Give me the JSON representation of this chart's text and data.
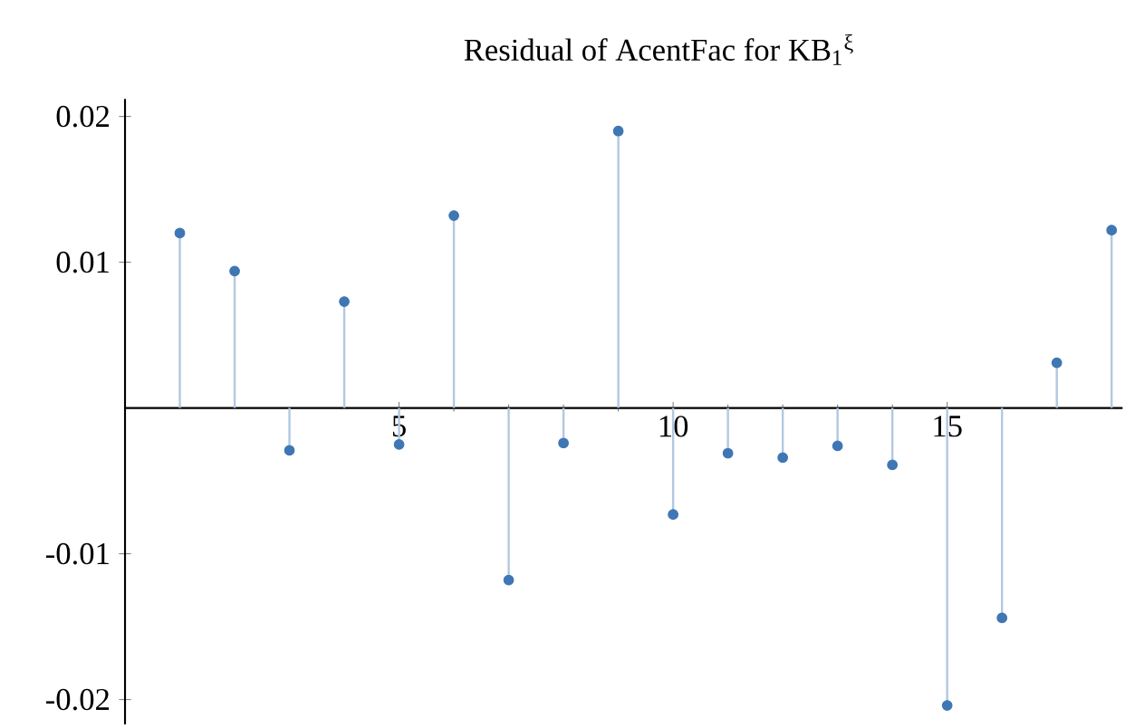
{
  "chart_data": {
    "type": "lollipop",
    "title": "Residual of AcentFac for KB$_{1}$$^{ξ}$",
    "x": [
      1,
      2,
      3,
      4,
      5,
      6,
      7,
      8,
      9,
      10,
      11,
      12,
      13,
      14,
      15,
      16,
      17,
      18
    ],
    "series": [
      {
        "color": "#3f76b4",
        "values": [
          0.012,
          0.0094,
          -0.0029,
          0.0073,
          -0.0025,
          0.0132,
          -0.0118,
          -0.0024,
          0.019,
          -0.0073,
          -0.0031,
          -0.0034,
          -0.0026,
          -0.0039,
          -0.0204,
          -0.0144,
          0.0031,
          0.0122
        ]
      }
    ],
    "xlim": [
      0,
      18.2
    ],
    "ylim": [
      -0.0217,
      0.0212
    ],
    "xticks": [
      5,
      10,
      15
    ],
    "yticks": [
      -0.02,
      -0.01,
      0.01,
      0.02
    ],
    "marker": "circle"
  }
}
